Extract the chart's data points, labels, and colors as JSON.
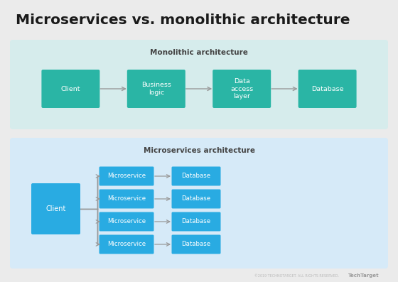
{
  "title": "Microservices vs. monolithic architecture",
  "title_fontsize": 14.5,
  "title_color": "#1a1a1a",
  "bg_color": "#ebebeb",
  "mono_bg": "#d6ecec",
  "micro_bg": "#d6eaf8",
  "mono_box_color": "#2ab5a5",
  "micro_box_color_ms": "#29abe2",
  "micro_box_color_db": "#29abe2",
  "mono_label": "Monolithic architecture",
  "micro_label": "Microservices architecture",
  "mono_boxes": [
    "Client",
    "Business\nlogic",
    "Data\naccess\nlayer",
    "Database"
  ],
  "micro_client": "Client",
  "micro_services": [
    "Microservice",
    "Microservice",
    "Microservice",
    "Microservice"
  ],
  "micro_databases": [
    "Database",
    "Database",
    "Database",
    "Database"
  ],
  "footer_text": "©2019 TECHNOTARGET. ALL RIGHTS RESERVED.",
  "footer_brand": "TechTarget",
  "box_text_color": "#ffffff",
  "label_color": "#444444",
  "arrow_color": "#999999"
}
